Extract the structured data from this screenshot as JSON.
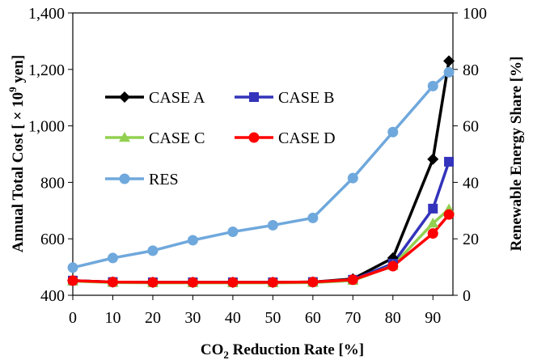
{
  "chart_data": {
    "type": "line",
    "x": [
      0,
      10,
      20,
      30,
      40,
      50,
      60,
      70,
      80,
      90,
      94
    ],
    "xticks": [
      "0",
      "10",
      "20",
      "30",
      "40",
      "50",
      "60",
      "70",
      "80",
      "90"
    ],
    "xlim": [
      0,
      95
    ],
    "xlabel_main": "CO",
    "xlabel_sub": "2",
    "xlabel_rest": " Reduction Rate [%]",
    "ylabel_left_main": "Annual Total Cost [ × 10",
    "ylabel_left_sup": "9",
    "ylabel_left_rest": " yen]",
    "ylabel_right": "Renewable Energy Share [%]",
    "ylim_left": [
      400,
      1400
    ],
    "ylim_right": [
      0,
      100
    ],
    "yticks_left": [
      "400",
      "600",
      "800",
      "1,000",
      "1,200",
      "1,400"
    ],
    "yticks_right": [
      "0",
      "20",
      "40",
      "60",
      "80",
      "100"
    ],
    "legend_placement": "upper-left",
    "series": [
      {
        "name": "CASE A",
        "axis": "left",
        "color": "#000000",
        "marker": "diamond",
        "values": [
          452,
          447,
          446,
          446,
          446,
          446,
          447,
          458,
          532,
          882,
          1230
        ]
      },
      {
        "name": "CASE B",
        "axis": "left",
        "color": "#3333bb",
        "marker": "square",
        "values": [
          452,
          447,
          446,
          446,
          446,
          446,
          447,
          455,
          512,
          707,
          873
        ]
      },
      {
        "name": "CASE C",
        "axis": "left",
        "color": "#92d050",
        "marker": "triangle",
        "values": [
          450,
          445,
          444,
          444,
          444,
          444,
          445,
          452,
          505,
          655,
          705
        ]
      },
      {
        "name": "CASE D",
        "axis": "left",
        "color": "#ff0000",
        "marker": "circle",
        "values": [
          452,
          447,
          446,
          446,
          446,
          446,
          447,
          455,
          503,
          619,
          686
        ]
      },
      {
        "name": "RES",
        "axis": "right",
        "color": "#6fa8dc",
        "marker": "circle",
        "values": [
          9.8,
          13.2,
          15.8,
          19.5,
          22.5,
          24.8,
          27.4,
          41.5,
          57.8,
          74.1,
          79.0
        ]
      }
    ],
    "legend_rows": [
      [
        "CASE A",
        "CASE B"
      ],
      [
        "CASE C",
        "CASE D"
      ],
      [
        "RES"
      ]
    ]
  }
}
